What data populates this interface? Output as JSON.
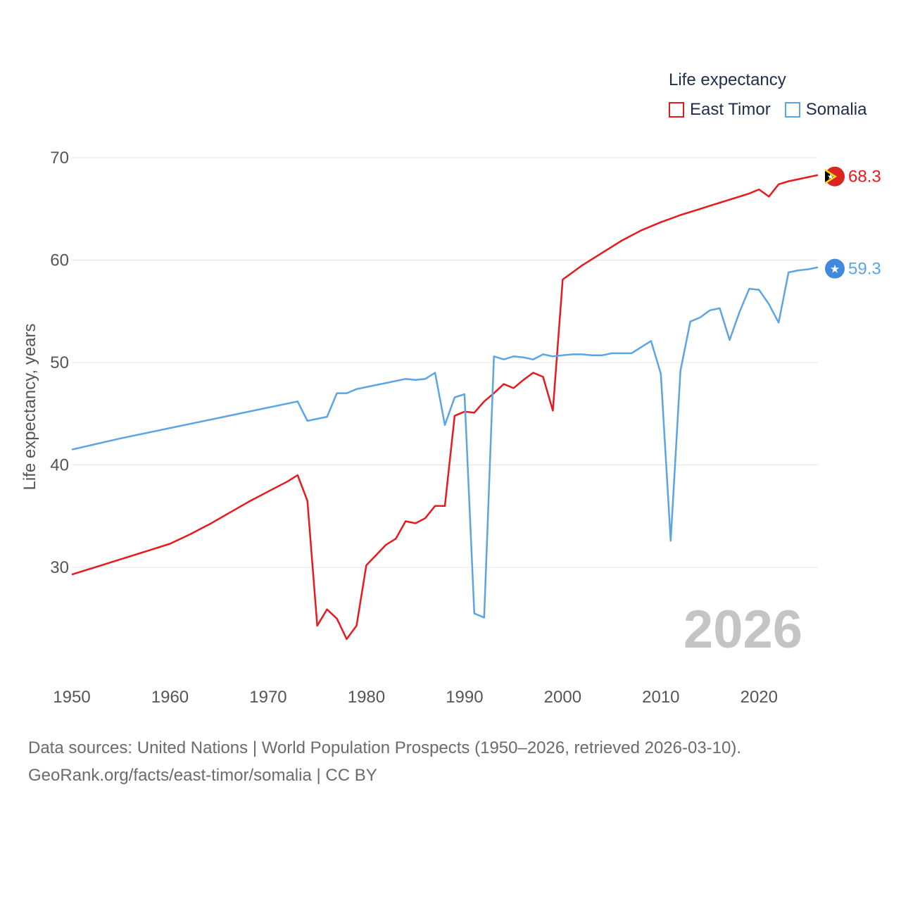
{
  "chart_data": {
    "type": "line",
    "legend_title": "Life expectancy",
    "ylabel": "Life expectancy, years",
    "xlim": [
      1950,
      2026
    ],
    "ylim": [
      20,
      73
    ],
    "yticks": [
      30,
      40,
      50,
      60,
      70
    ],
    "xticks": [
      1950,
      1960,
      1970,
      1980,
      1990,
      2000,
      2010,
      2020
    ],
    "current_year": "2026",
    "series": [
      {
        "name": "East Timor",
        "color": "#e8191c",
        "end_label": "68.3",
        "flag_icon": "east-timor-flag-icon",
        "x": [
          1950,
          1955,
          1958,
          1960,
          1962,
          1964,
          1966,
          1968,
          1970,
          1972,
          1973,
          1974,
          1975,
          1976,
          1977,
          1978,
          1979,
          1980,
          1982,
          1983,
          1984,
          1985,
          1986,
          1987,
          1988,
          1989,
          1990,
          1991,
          1992,
          1993,
          1994,
          1995,
          1996,
          1997,
          1998,
          1999,
          2000,
          2002,
          2004,
          2006,
          2008,
          2010,
          2012,
          2014,
          2016,
          2018,
          2019,
          2020,
          2021,
          2022,
          2023,
          2024,
          2025,
          2026
        ],
        "values": [
          29.3,
          30.8,
          31.7,
          32.3,
          33.2,
          34.2,
          35.3,
          36.4,
          37.4,
          38.4,
          39.0,
          36.5,
          24.3,
          25.9,
          25.0,
          23.0,
          24.3,
          30.2,
          32.2,
          32.8,
          34.5,
          34.3,
          34.8,
          36.0,
          36.0,
          44.8,
          45.2,
          45.1,
          46.2,
          47.0,
          47.9,
          47.5,
          48.3,
          49.0,
          48.6,
          45.3,
          58.1,
          59.5,
          60.7,
          61.9,
          62.9,
          63.7,
          64.4,
          65.0,
          65.6,
          66.2,
          66.5,
          66.9,
          66.2,
          67.4,
          67.7,
          67.9,
          68.1,
          68.3
        ]
      },
      {
        "name": "Somalia",
        "color": "#5ba4e5",
        "end_label": "59.3",
        "flag_icon": "somalia-flag-icon",
        "x": [
          1950,
          1955,
          1960,
          1965,
          1970,
          1973,
          1974,
          1976,
          1977,
          1978,
          1979,
          1980,
          1982,
          1984,
          1985,
          1986,
          1987,
          1988,
          1989,
          1990,
          1991,
          1992,
          1993,
          1994,
          1995,
          1996,
          1997,
          1998,
          1999,
          2000,
          2001,
          2002,
          2003,
          2004,
          2005,
          2006,
          2007,
          2008,
          2009,
          2010,
          2011,
          2012,
          2013,
          2014,
          2015,
          2016,
          2017,
          2018,
          2019,
          2020,
          2021,
          2022,
          2023,
          2024,
          2025,
          2026
        ],
        "values": [
          41.5,
          42.6,
          43.6,
          44.6,
          45.6,
          46.2,
          44.3,
          44.7,
          47.0,
          47.0,
          47.4,
          47.6,
          48.0,
          48.4,
          48.3,
          48.4,
          49.0,
          43.9,
          46.6,
          46.9,
          25.5,
          25.1,
          50.6,
          50.3,
          50.6,
          50.5,
          50.3,
          50.8,
          50.6,
          50.7,
          50.8,
          50.8,
          50.7,
          50.7,
          50.9,
          50.9,
          50.9,
          51.5,
          52.1,
          48.9,
          32.6,
          49.2,
          54.0,
          54.4,
          55.1,
          55.3,
          52.2,
          54.9,
          57.2,
          57.1,
          55.7,
          53.9,
          58.8,
          59.0,
          59.1,
          59.3
        ]
      }
    ]
  },
  "footer": {
    "source_line": "Data sources: United Nations | World Population Prospects (1950–2026, retrieved 2026-03-10).",
    "url_line": "GeoRank.org/facts/east-timor/somalia | CC BY"
  }
}
